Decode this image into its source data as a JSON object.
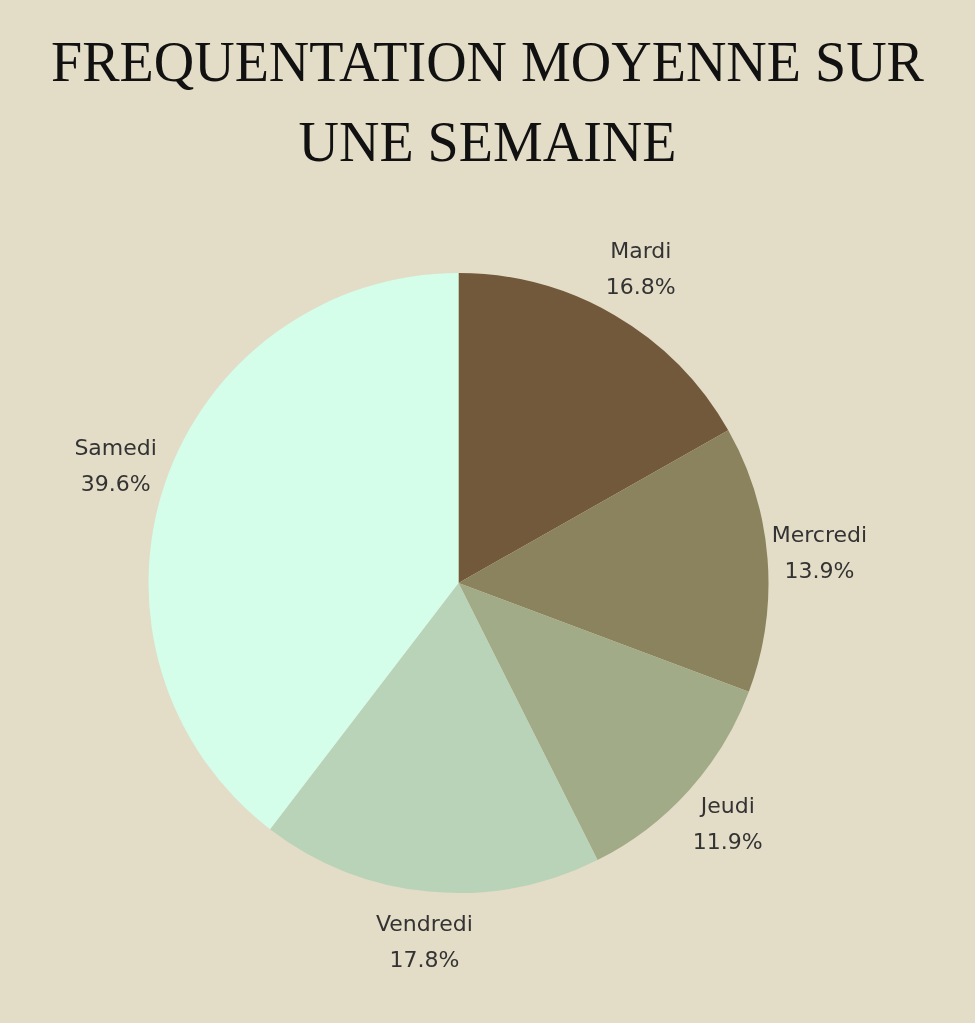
{
  "chart_data": {
    "type": "pie",
    "title": "FREQUENTATION MOYENNE SUR UNE SEMAINE",
    "categories": [
      "Mardi",
      "Mercredi",
      "Jeudi",
      "Vendredi",
      "Samedi"
    ],
    "values": [
      16.8,
      13.9,
      11.9,
      17.8,
      39.6
    ],
    "colors": [
      "#73593b",
      "#8b835d",
      "#a2ab87",
      "#b8d3b7",
      "#d4fdea"
    ],
    "value_labels": [
      "16.8%",
      "13.9%",
      "11.9%",
      "17.8%",
      "39.6%"
    ],
    "legend": false
  }
}
